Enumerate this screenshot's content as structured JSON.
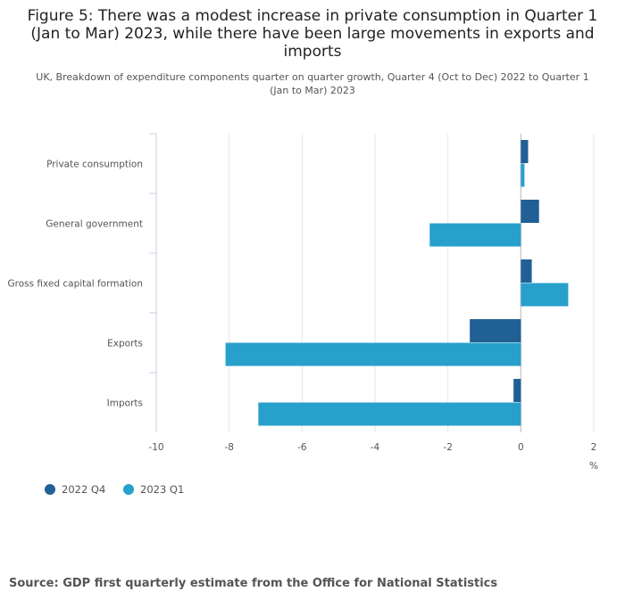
{
  "chart_data": {
    "type": "bar",
    "orientation": "horizontal",
    "title": "Figure 5: There was a modest increase in private consumption in Quarter 1 (Jan to Mar) 2023, while there have been large movements in exports and imports",
    "subtitle": "UK, Breakdown of expenditure components quarter on quarter growth, Quarter 4 (Oct to Dec) 2022 to Quarter 1 (Jan to Mar) 2023",
    "categories": [
      "Private consumption",
      "General government",
      "Gross fixed capital formation",
      "Exports",
      "Imports"
    ],
    "series": [
      {
        "name": "2022 Q4",
        "color": "#206095",
        "values": [
          0.2,
          0.5,
          0.3,
          -1.4,
          -0.2
        ]
      },
      {
        "name": "2023 Q1",
        "color": "#27a0cc",
        "values": [
          0.1,
          -2.5,
          1.3,
          -8.1,
          -7.2
        ]
      }
    ],
    "xlim": [
      -10,
      2
    ],
    "xticks": [
      "-10",
      "-8",
      "-6",
      "-4",
      "-2",
      "0",
      "2"
    ],
    "xlabel": "%",
    "grid": true,
    "legend_position": "bottom-left"
  },
  "source": "Source: GDP first quarterly estimate from the Office for National Statistics"
}
